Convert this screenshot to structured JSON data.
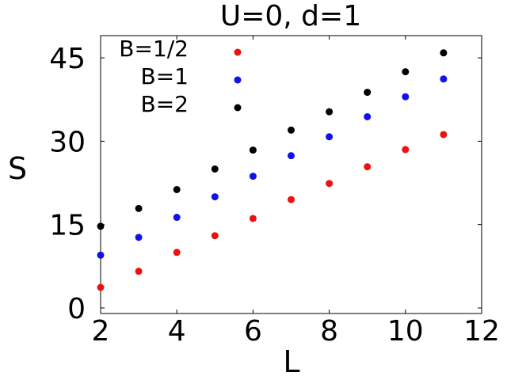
{
  "chart_data": {
    "type": "scatter",
    "title": "U=0, d=1",
    "xlabel": "L",
    "ylabel": "S",
    "xlim": [
      2,
      12
    ],
    "ylim": [
      -1,
      49
    ],
    "xticks": [
      2,
      4,
      6,
      8,
      10,
      12
    ],
    "yticks": [
      0,
      15,
      30,
      45
    ],
    "xtick_labels": [
      "2",
      "4",
      "6",
      "8",
      "10",
      "12"
    ],
    "ytick_labels": [
      "0",
      "15",
      "30",
      "45"
    ],
    "grid": false,
    "legend_position": "top-left",
    "series": [
      {
        "name": "B=1/2",
        "color": "#ee1111",
        "x": [
          2,
          3,
          4,
          5,
          6,
          7,
          8,
          9,
          10,
          11
        ],
        "y": [
          3.7,
          6.6,
          10.0,
          13.0,
          16.1,
          19.5,
          22.4,
          25.4,
          28.5,
          31.2
        ]
      },
      {
        "name": "B=1",
        "color": "#1111ee",
        "x": [
          2,
          3,
          4,
          5,
          6,
          7,
          8,
          9,
          10,
          11
        ],
        "y": [
          9.5,
          12.7,
          16.3,
          20.0,
          23.7,
          27.4,
          30.8,
          34.4,
          38.0,
          41.2
        ]
      },
      {
        "name": "B=2",
        "color": "#000000",
        "x": [
          2,
          3,
          4,
          5,
          6,
          7,
          8,
          9,
          10,
          11
        ],
        "y": [
          14.7,
          17.9,
          21.3,
          25.0,
          28.4,
          32.0,
          35.3,
          38.8,
          42.5,
          45.9
        ]
      }
    ]
  }
}
